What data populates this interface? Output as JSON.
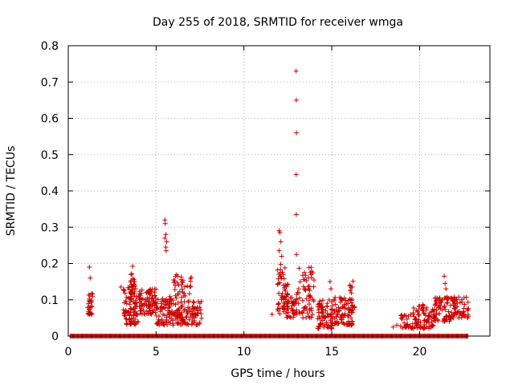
{
  "chart_data": {
    "type": "scatter",
    "title": "Day 255 of 2018, SRMTID for receiver wmga",
    "xlabel": "GPS time / hours",
    "ylabel": "SRMTID / TECUs",
    "xlim": [
      0,
      24
    ],
    "ylim": [
      0,
      0.8
    ],
    "grid": true,
    "marker": "+",
    "marker_color": "#cc0000",
    "axis_color": "#000000",
    "grid_color": "#b0b0b0",
    "x_ticks": [
      0,
      5,
      10,
      15,
      20
    ],
    "x_tick_labels": [
      "0",
      "5",
      "10",
      "15",
      "20"
    ],
    "y_ticks": [
      0,
      0.1,
      0.2,
      0.3,
      0.4,
      0.5,
      0.6,
      0.7,
      0.8
    ],
    "y_tick_labels": [
      "0",
      "0.1",
      "0.2",
      "0.3",
      "0.4",
      "0.5",
      "0.6",
      "0.7",
      "0.8"
    ],
    "zero_segments": [
      [
        0.1,
        22.8
      ]
    ],
    "clusters": [
      {
        "x0": 1.1,
        "x1": 1.4,
        "y0": 0.06,
        "y1": 0.12,
        "n": 30
      },
      {
        "x0": 3.1,
        "x1": 4.0,
        "y0": 0.03,
        "y1": 0.14,
        "n": 90
      },
      {
        "x0": 3.5,
        "x1": 3.8,
        "y0": 0.1,
        "y1": 0.2,
        "n": 25
      },
      {
        "x0": 4.0,
        "x1": 5.0,
        "y0": 0.06,
        "y1": 0.13,
        "n": 90
      },
      {
        "x0": 5.0,
        "x1": 6.0,
        "y0": 0.03,
        "y1": 0.11,
        "n": 80
      },
      {
        "x0": 6.0,
        "x1": 7.0,
        "y0": 0.03,
        "y1": 0.17,
        "n": 100
      },
      {
        "x0": 7.0,
        "x1": 7.6,
        "y0": 0.03,
        "y1": 0.1,
        "n": 40
      },
      {
        "x0": 11.9,
        "x1": 12.5,
        "y0": 0.06,
        "y1": 0.2,
        "n": 55
      },
      {
        "x0": 12.4,
        "x1": 13.0,
        "y0": 0.05,
        "y1": 0.12,
        "n": 45
      },
      {
        "x0": 13.1,
        "x1": 14.0,
        "y0": 0.05,
        "y1": 0.19,
        "n": 60
      },
      {
        "x0": 14.2,
        "x1": 15.0,
        "y0": 0.02,
        "y1": 0.1,
        "n": 70
      },
      {
        "x0": 15.0,
        "x1": 16.2,
        "y0": 0.03,
        "y1": 0.11,
        "n": 90
      },
      {
        "x0": 16.0,
        "x1": 16.3,
        "y0": 0.06,
        "y1": 0.16,
        "n": 20
      },
      {
        "x0": 18.9,
        "x1": 19.6,
        "y0": 0.02,
        "y1": 0.06,
        "n": 30
      },
      {
        "x0": 19.6,
        "x1": 20.8,
        "y0": 0.02,
        "y1": 0.09,
        "n": 80
      },
      {
        "x0": 20.8,
        "x1": 21.8,
        "y0": 0.04,
        "y1": 0.11,
        "n": 70
      },
      {
        "x0": 21.8,
        "x1": 22.8,
        "y0": 0.05,
        "y1": 0.11,
        "n": 60
      }
    ],
    "points": [
      {
        "x": 1.2,
        "y": 0.19
      },
      {
        "x": 1.25,
        "y": 0.16
      },
      {
        "x": 3.0,
        "y": 0.135
      },
      {
        "x": 5.5,
        "y": 0.32
      },
      {
        "x": 5.52,
        "y": 0.31
      },
      {
        "x": 5.55,
        "y": 0.28
      },
      {
        "x": 5.5,
        "y": 0.27
      },
      {
        "x": 5.6,
        "y": 0.26
      },
      {
        "x": 5.55,
        "y": 0.245
      },
      {
        "x": 5.57,
        "y": 0.235
      },
      {
        "x": 11.6,
        "y": 0.06
      },
      {
        "x": 12.0,
        "y": 0.29
      },
      {
        "x": 12.05,
        "y": 0.285
      },
      {
        "x": 12.1,
        "y": 0.26
      },
      {
        "x": 12.0,
        "y": 0.235
      },
      {
        "x": 12.15,
        "y": 0.22
      },
      {
        "x": 12.97,
        "y": 0.73
      },
      {
        "x": 12.98,
        "y": 0.65
      },
      {
        "x": 12.99,
        "y": 0.56
      },
      {
        "x": 12.97,
        "y": 0.445
      },
      {
        "x": 12.98,
        "y": 0.335
      },
      {
        "x": 12.99,
        "y": 0.225
      },
      {
        "x": 13.05,
        "y": 0.12
      },
      {
        "x": 13.1,
        "y": 0.09
      },
      {
        "x": 14.9,
        "y": 0.15
      },
      {
        "x": 14.95,
        "y": 0.13
      },
      {
        "x": 18.5,
        "y": 0.025
      },
      {
        "x": 18.7,
        "y": 0.03
      },
      {
        "x": 21.4,
        "y": 0.165
      },
      {
        "x": 21.45,
        "y": 0.145
      },
      {
        "x": 21.5,
        "y": 0.13
      }
    ]
  }
}
